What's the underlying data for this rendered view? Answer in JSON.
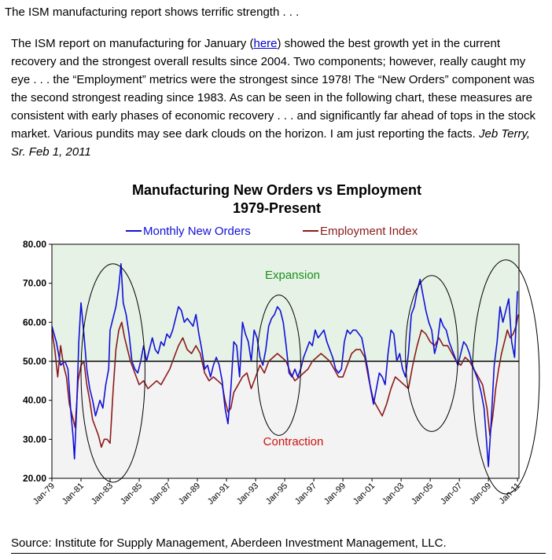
{
  "article": {
    "headline": "The ISM manufacturing report shows terrific strength . . .",
    "p_before_link": "The ISM report on manufacturing for January (",
    "link_text": "here",
    "p_after_link": ") showed the best growth yet in the current recovery and the strongest overall results since 2004.  Two components; however, really caught my eye . . . the “Employment” metrics were the strongest since 1978!  The “New Orders” component was the second strongest reading since 1983.  As can be seen in the following chart, these measures are consistent with early phases of economic recovery . . . and significantly far ahead of tops in the stock market.  Various pundits may see dark clouds on the horizon.  I am just reporting the facts.",
    "signature": "Jeb Terry, Sr. Feb 1, 2011",
    "source": "Source: Institute for Supply Management, Aberdeen Investment Management, LLC."
  },
  "colors": {
    "new_orders": "#1010d8",
    "employment": "#8b1a1a",
    "expansion_fill": "#e6f2e6",
    "contraction_fill": "#f3f3f3",
    "expansion_text": "#1a8f1a",
    "contraction_text": "#cc1111",
    "threshold": "#404040"
  },
  "chart_data": {
    "type": "line",
    "title": "Manufacturing New Orders vs Employment",
    "subtitle": "1979-Present",
    "ylim": [
      20,
      80
    ],
    "yticks": [
      "20.00",
      "30.00",
      "40.00",
      "50.00",
      "60.00",
      "70.00",
      "80.00"
    ],
    "xlim": [
      1979.0,
      2011.1
    ],
    "xticks": [
      "Jan-79",
      "Jan-81",
      "Jan-83",
      "Jan-85",
      "Jan-87",
      "Jan-89",
      "Jan-91",
      "Jan-93",
      "Jan-95",
      "Jan-97",
      "Jan-99",
      "Jan-01",
      "Jan-03",
      "Jan-05",
      "Jan-07",
      "Jan-09",
      "Jan-11"
    ],
    "legend_position": "top",
    "grid": false,
    "threshold": 50,
    "annotations": [
      "Expansion",
      "Contraction"
    ],
    "series": [
      {
        "name": "Monthly New Orders",
        "color_key": "new_orders",
        "points": [
          [
            1979.0,
            59
          ],
          [
            1979.3,
            55
          ],
          [
            1979.6,
            49
          ],
          [
            1979.9,
            50
          ],
          [
            1980.1,
            48
          ],
          [
            1980.3,
            37
          ],
          [
            1980.45,
            31
          ],
          [
            1980.55,
            25
          ],
          [
            1980.7,
            38
          ],
          [
            1980.85,
            55
          ],
          [
            1981.0,
            65
          ],
          [
            1981.2,
            57
          ],
          [
            1981.4,
            48
          ],
          [
            1981.6,
            43
          ],
          [
            1981.8,
            40
          ],
          [
            1982.0,
            36
          ],
          [
            1982.3,
            40
          ],
          [
            1982.5,
            38
          ],
          [
            1982.7,
            44
          ],
          [
            1982.9,
            48
          ],
          [
            1983.0,
            58
          ],
          [
            1983.2,
            61
          ],
          [
            1983.4,
            64
          ],
          [
            1983.6,
            69
          ],
          [
            1983.75,
            75
          ],
          [
            1983.9,
            65
          ],
          [
            1984.1,
            62
          ],
          [
            1984.3,
            57
          ],
          [
            1984.5,
            50
          ],
          [
            1984.7,
            48
          ],
          [
            1984.9,
            47
          ],
          [
            1985.1,
            50
          ],
          [
            1985.3,
            54
          ],
          [
            1985.5,
            50
          ],
          [
            1985.7,
            53
          ],
          [
            1985.9,
            56
          ],
          [
            1986.1,
            53
          ],
          [
            1986.3,
            52
          ],
          [
            1986.5,
            55
          ],
          [
            1986.7,
            54
          ],
          [
            1986.9,
            57
          ],
          [
            1987.1,
            56
          ],
          [
            1987.3,
            58
          ],
          [
            1987.5,
            61
          ],
          [
            1987.7,
            64
          ],
          [
            1987.9,
            63
          ],
          [
            1988.1,
            60
          ],
          [
            1988.3,
            61
          ],
          [
            1988.5,
            60
          ],
          [
            1988.7,
            59
          ],
          [
            1988.9,
            62
          ],
          [
            1989.1,
            57
          ],
          [
            1989.3,
            53
          ],
          [
            1989.5,
            48
          ],
          [
            1989.7,
            49
          ],
          [
            1989.9,
            46
          ],
          [
            1990.1,
            49
          ],
          [
            1990.3,
            51
          ],
          [
            1990.5,
            49
          ],
          [
            1990.7,
            45
          ],
          [
            1990.9,
            38
          ],
          [
            1991.1,
            34
          ],
          [
            1991.3,
            43
          ],
          [
            1991.5,
            55
          ],
          [
            1991.7,
            54
          ],
          [
            1991.9,
            46
          ],
          [
            1992.1,
            60
          ],
          [
            1992.3,
            57
          ],
          [
            1992.5,
            55
          ],
          [
            1992.7,
            50
          ],
          [
            1992.9,
            58
          ],
          [
            1993.1,
            56
          ],
          [
            1993.3,
            51
          ],
          [
            1993.5,
            49
          ],
          [
            1993.7,
            53
          ],
          [
            1993.9,
            59
          ],
          [
            1994.1,
            61
          ],
          [
            1994.3,
            62
          ],
          [
            1994.5,
            64
          ],
          [
            1994.7,
            63
          ],
          [
            1994.9,
            60
          ],
          [
            1995.1,
            54
          ],
          [
            1995.3,
            47
          ],
          [
            1995.5,
            46
          ],
          [
            1995.7,
            48
          ],
          [
            1995.9,
            46
          ],
          [
            1996.1,
            48
          ],
          [
            1996.3,
            51
          ],
          [
            1996.5,
            53
          ],
          [
            1996.7,
            55
          ],
          [
            1996.9,
            54
          ],
          [
            1997.1,
            58
          ],
          [
            1997.3,
            56
          ],
          [
            1997.5,
            57
          ],
          [
            1997.7,
            58
          ],
          [
            1997.9,
            55
          ],
          [
            1998.1,
            53
          ],
          [
            1998.3,
            51
          ],
          [
            1998.5,
            48
          ],
          [
            1998.7,
            47
          ],
          [
            1998.9,
            48
          ],
          [
            1999.1,
            55
          ],
          [
            1999.3,
            58
          ],
          [
            1999.5,
            57
          ],
          [
            1999.7,
            58
          ],
          [
            1999.9,
            58
          ],
          [
            2000.1,
            57
          ],
          [
            2000.3,
            56
          ],
          [
            2000.5,
            52
          ],
          [
            2000.7,
            48
          ],
          [
            2000.9,
            43
          ],
          [
            2001.1,
            39
          ],
          [
            2001.3,
            43
          ],
          [
            2001.5,
            47
          ],
          [
            2001.7,
            46
          ],
          [
            2001.9,
            44
          ],
          [
            2002.1,
            52
          ],
          [
            2002.3,
            58
          ],
          [
            2002.5,
            57
          ],
          [
            2002.7,
            50
          ],
          [
            2002.9,
            52
          ],
          [
            2003.1,
            48
          ],
          [
            2003.3,
            46
          ],
          [
            2003.5,
            52
          ],
          [
            2003.7,
            62
          ],
          [
            2003.9,
            64
          ],
          [
            2004.1,
            68
          ],
          [
            2004.3,
            71
          ],
          [
            2004.5,
            67
          ],
          [
            2004.7,
            63
          ],
          [
            2004.9,
            60
          ],
          [
            2005.1,
            58
          ],
          [
            2005.3,
            52
          ],
          [
            2005.5,
            55
          ],
          [
            2005.7,
            61
          ],
          [
            2005.9,
            59
          ],
          [
            2006.1,
            58
          ],
          [
            2006.3,
            55
          ],
          [
            2006.5,
            53
          ],
          [
            2006.7,
            51
          ],
          [
            2006.9,
            49
          ],
          [
            2007.1,
            52
          ],
          [
            2007.3,
            55
          ],
          [
            2007.5,
            54
          ],
          [
            2007.7,
            52
          ],
          [
            2007.9,
            49
          ],
          [
            2008.1,
            47
          ],
          [
            2008.3,
            45
          ],
          [
            2008.5,
            42
          ],
          [
            2008.7,
            38
          ],
          [
            2008.9,
            28
          ],
          [
            2009.0,
            23
          ],
          [
            2009.2,
            35
          ],
          [
            2009.4,
            49
          ],
          [
            2009.6,
            55
          ],
          [
            2009.8,
            64
          ],
          [
            2010.0,
            60
          ],
          [
            2010.2,
            63
          ],
          [
            2010.4,
            66
          ],
          [
            2010.6,
            55
          ],
          [
            2010.8,
            51
          ],
          [
            2011.0,
            68
          ]
        ]
      },
      {
        "name": "Employment Index",
        "color_key": "employment",
        "points": [
          [
            1979.0,
            58
          ],
          [
            1979.2,
            53
          ],
          [
            1979.4,
            46
          ],
          [
            1979.6,
            54
          ],
          [
            1979.8,
            49
          ],
          [
            1980.0,
            46
          ],
          [
            1980.2,
            39
          ],
          [
            1980.4,
            36
          ],
          [
            1980.6,
            33
          ],
          [
            1980.8,
            45
          ],
          [
            1981.0,
            49
          ],
          [
            1981.2,
            50
          ],
          [
            1981.4,
            44
          ],
          [
            1981.6,
            40
          ],
          [
            1981.8,
            35
          ],
          [
            1982.0,
            33
          ],
          [
            1982.2,
            31
          ],
          [
            1982.4,
            28
          ],
          [
            1982.6,
            30
          ],
          [
            1982.8,
            30
          ],
          [
            1983.0,
            29
          ],
          [
            1983.2,
            42
          ],
          [
            1983.4,
            53
          ],
          [
            1983.6,
            58
          ],
          [
            1983.8,
            60
          ],
          [
            1984.0,
            56
          ],
          [
            1984.2,
            53
          ],
          [
            1984.4,
            50
          ],
          [
            1984.6,
            48
          ],
          [
            1984.8,
            46
          ],
          [
            1985.0,
            44
          ],
          [
            1985.3,
            45
          ],
          [
            1985.6,
            43
          ],
          [
            1985.9,
            44
          ],
          [
            1986.2,
            45
          ],
          [
            1986.5,
            44
          ],
          [
            1986.8,
            46
          ],
          [
            1987.1,
            48
          ],
          [
            1987.4,
            51
          ],
          [
            1987.7,
            54
          ],
          [
            1988.0,
            56
          ],
          [
            1988.3,
            53
          ],
          [
            1988.6,
            52
          ],
          [
            1988.9,
            54
          ],
          [
            1989.2,
            52
          ],
          [
            1989.5,
            47
          ],
          [
            1989.8,
            45
          ],
          [
            1990.1,
            46
          ],
          [
            1990.4,
            45
          ],
          [
            1990.7,
            44
          ],
          [
            1990.9,
            40
          ],
          [
            1991.1,
            37
          ],
          [
            1991.3,
            38
          ],
          [
            1991.5,
            42
          ],
          [
            1991.8,
            44
          ],
          [
            1992.1,
            46
          ],
          [
            1992.4,
            47
          ],
          [
            1992.7,
            43
          ],
          [
            1993.0,
            46
          ],
          [
            1993.3,
            49
          ],
          [
            1993.6,
            47
          ],
          [
            1993.9,
            50
          ],
          [
            1994.2,
            51
          ],
          [
            1994.5,
            52
          ],
          [
            1994.8,
            51
          ],
          [
            1995.1,
            50
          ],
          [
            1995.4,
            47
          ],
          [
            1995.7,
            45
          ],
          [
            1996.0,
            46
          ],
          [
            1996.3,
            47
          ],
          [
            1996.6,
            48
          ],
          [
            1996.9,
            50
          ],
          [
            1997.2,
            51
          ],
          [
            1997.5,
            52
          ],
          [
            1997.8,
            51
          ],
          [
            1998.1,
            50
          ],
          [
            1998.4,
            48
          ],
          [
            1998.7,
            46
          ],
          [
            1999.0,
            46
          ],
          [
            1999.3,
            49
          ],
          [
            1999.6,
            52
          ],
          [
            1999.9,
            53
          ],
          [
            2000.2,
            53
          ],
          [
            2000.5,
            51
          ],
          [
            2000.8,
            45
          ],
          [
            2001.1,
            40
          ],
          [
            2001.4,
            38
          ],
          [
            2001.7,
            36
          ],
          [
            2002.0,
            39
          ],
          [
            2002.3,
            43
          ],
          [
            2002.6,
            46
          ],
          [
            2002.9,
            45
          ],
          [
            2003.2,
            44
          ],
          [
            2003.5,
            43
          ],
          [
            2003.8,
            49
          ],
          [
            2004.1,
            54
          ],
          [
            2004.4,
            58
          ],
          [
            2004.7,
            57
          ],
          [
            2005.0,
            55
          ],
          [
            2005.3,
            54
          ],
          [
            2005.6,
            56
          ],
          [
            2005.9,
            54
          ],
          [
            2006.2,
            54
          ],
          [
            2006.5,
            52
          ],
          [
            2006.8,
            50
          ],
          [
            2007.1,
            49
          ],
          [
            2007.4,
            51
          ],
          [
            2007.7,
            50
          ],
          [
            2008.0,
            48
          ],
          [
            2008.3,
            46
          ],
          [
            2008.6,
            44
          ],
          [
            2008.9,
            38
          ],
          [
            2009.1,
            31
          ],
          [
            2009.3,
            36
          ],
          [
            2009.5,
            43
          ],
          [
            2009.7,
            48
          ],
          [
            2009.9,
            52
          ],
          [
            2010.1,
            55
          ],
          [
            2010.3,
            58
          ],
          [
            2010.5,
            56
          ],
          [
            2010.7,
            57
          ],
          [
            2010.9,
            59
          ],
          [
            2011.05,
            62
          ]
        ]
      }
    ],
    "highlight_ellipses": [
      {
        "x_center": 1983.2,
        "x_halfwidth": 2.2,
        "y_center": 47,
        "y_halfwidth": 28
      },
      {
        "x_center": 1994.6,
        "x_halfwidth": 1.5,
        "y_center": 49,
        "y_halfwidth": 18
      },
      {
        "x_center": 2005.1,
        "x_halfwidth": 1.8,
        "y_center": 52,
        "y_halfwidth": 20
      },
      {
        "x_center": 2010.2,
        "x_halfwidth": 2.3,
        "y_center": 46,
        "y_halfwidth": 30
      }
    ]
  }
}
